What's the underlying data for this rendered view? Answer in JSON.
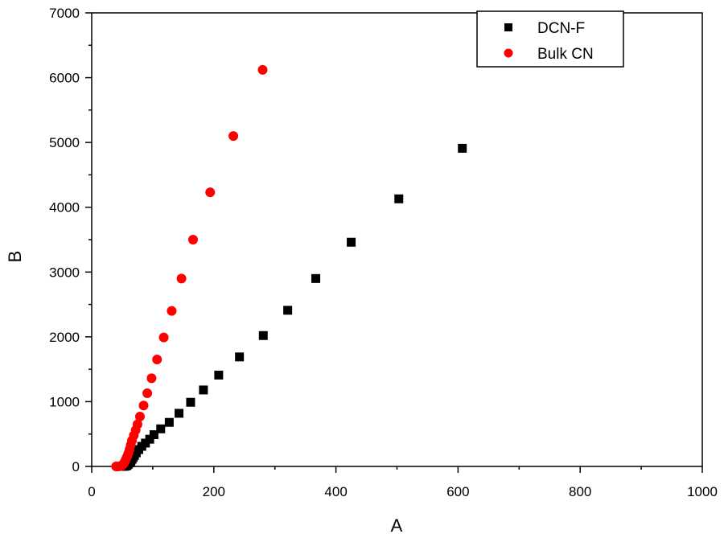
{
  "chart_data": {
    "type": "scatter",
    "xlabel": "A",
    "ylabel": "B",
    "xlim": [
      0,
      1000
    ],
    "ylim": [
      0,
      7000
    ],
    "xticks": [
      0,
      200,
      400,
      600,
      800,
      1000
    ],
    "yticks": [
      0,
      1000,
      2000,
      3000,
      4000,
      5000,
      6000,
      7000
    ],
    "grid": false,
    "legend_position": "top-right",
    "series": [
      {
        "name": "DCN-F",
        "marker": "square",
        "color": "#000000",
        "points": [
          [
            50,
            0
          ],
          [
            53,
            2
          ],
          [
            55,
            5
          ],
          [
            57,
            10
          ],
          [
            58,
            20
          ],
          [
            60,
            35
          ],
          [
            62,
            55
          ],
          [
            64,
            80
          ],
          [
            66,
            110
          ],
          [
            68,
            140
          ],
          [
            70,
            170
          ],
          [
            73,
            210
          ],
          [
            77,
            260
          ],
          [
            82,
            310
          ],
          [
            88,
            360
          ],
          [
            95,
            420
          ],
          [
            102,
            490
          ],
          [
            113,
            580
          ],
          [
            127,
            680
          ],
          [
            143,
            820
          ],
          [
            162,
            990
          ],
          [
            183,
            1180
          ],
          [
            208,
            1410
          ],
          [
            242,
            1690
          ],
          [
            281,
            2020
          ],
          [
            321,
            2410
          ],
          [
            367,
            2900
          ],
          [
            425,
            3460
          ],
          [
            503,
            4130
          ],
          [
            607,
            4910
          ]
        ]
      },
      {
        "name": "Bulk CN",
        "marker": "circle",
        "color": "#ff0000",
        "points": [
          [
            40,
            0
          ],
          [
            44,
            0
          ],
          [
            47,
            5
          ],
          [
            50,
            20
          ],
          [
            52,
            40
          ],
          [
            54,
            70
          ],
          [
            56,
            110
          ],
          [
            58,
            150
          ],
          [
            60,
            200
          ],
          [
            62,
            260
          ],
          [
            64,
            330
          ],
          [
            66,
            400
          ],
          [
            69,
            480
          ],
          [
            72,
            560
          ],
          [
            75,
            650
          ],
          [
            79,
            770
          ],
          [
            85,
            940
          ],
          [
            91,
            1130
          ],
          [
            98,
            1360
          ],
          [
            107,
            1650
          ],
          [
            118,
            1990
          ],
          [
            131,
            2400
          ],
          [
            147,
            2900
          ],
          [
            166,
            3500
          ],
          [
            194,
            4230
          ],
          [
            232,
            5100
          ],
          [
            280,
            6120
          ]
        ]
      }
    ]
  }
}
